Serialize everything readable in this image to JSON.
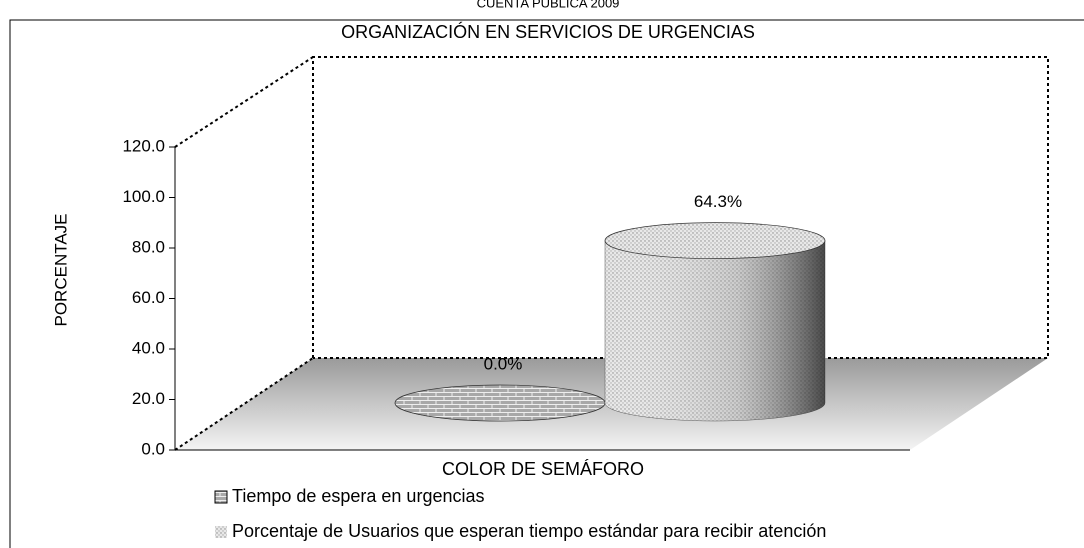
{
  "chart_data": {
    "type": "bar",
    "subtitle": "CUENTA PÚBLICA 2009",
    "title": "ORGANIZACIÓN EN SERVICIOS DE URGENCIAS",
    "y_label": "PORCENTAJE",
    "x_label": "COLOR DE SEMÁFORO",
    "series": [
      {
        "name": "Tiempo de espera en urgencias",
        "color": "#a0a0a0",
        "values": [
          0.0
        ],
        "value_labels": [
          "0.0%"
        ]
      },
      {
        "name": "Porcentaje de Usuarios que esperan tiempo estándar para recibir atención",
        "color": "#d8d8d8",
        "values": [
          64.3
        ],
        "value_labels": [
          "64.3%"
        ]
      }
    ],
    "ylim": [
      0,
      120
    ],
    "yticks": [
      {
        "value": 0,
        "label": "0.0"
      },
      {
        "value": 20,
        "label": "20.0"
      },
      {
        "value": 40,
        "label": "40.0"
      },
      {
        "value": 60,
        "label": "60.0"
      },
      {
        "value": 80,
        "label": "80.0"
      },
      {
        "value": 100,
        "label": "100.0"
      },
      {
        "value": 120,
        "label": "120.0"
      }
    ],
    "legend": "bottom"
  }
}
